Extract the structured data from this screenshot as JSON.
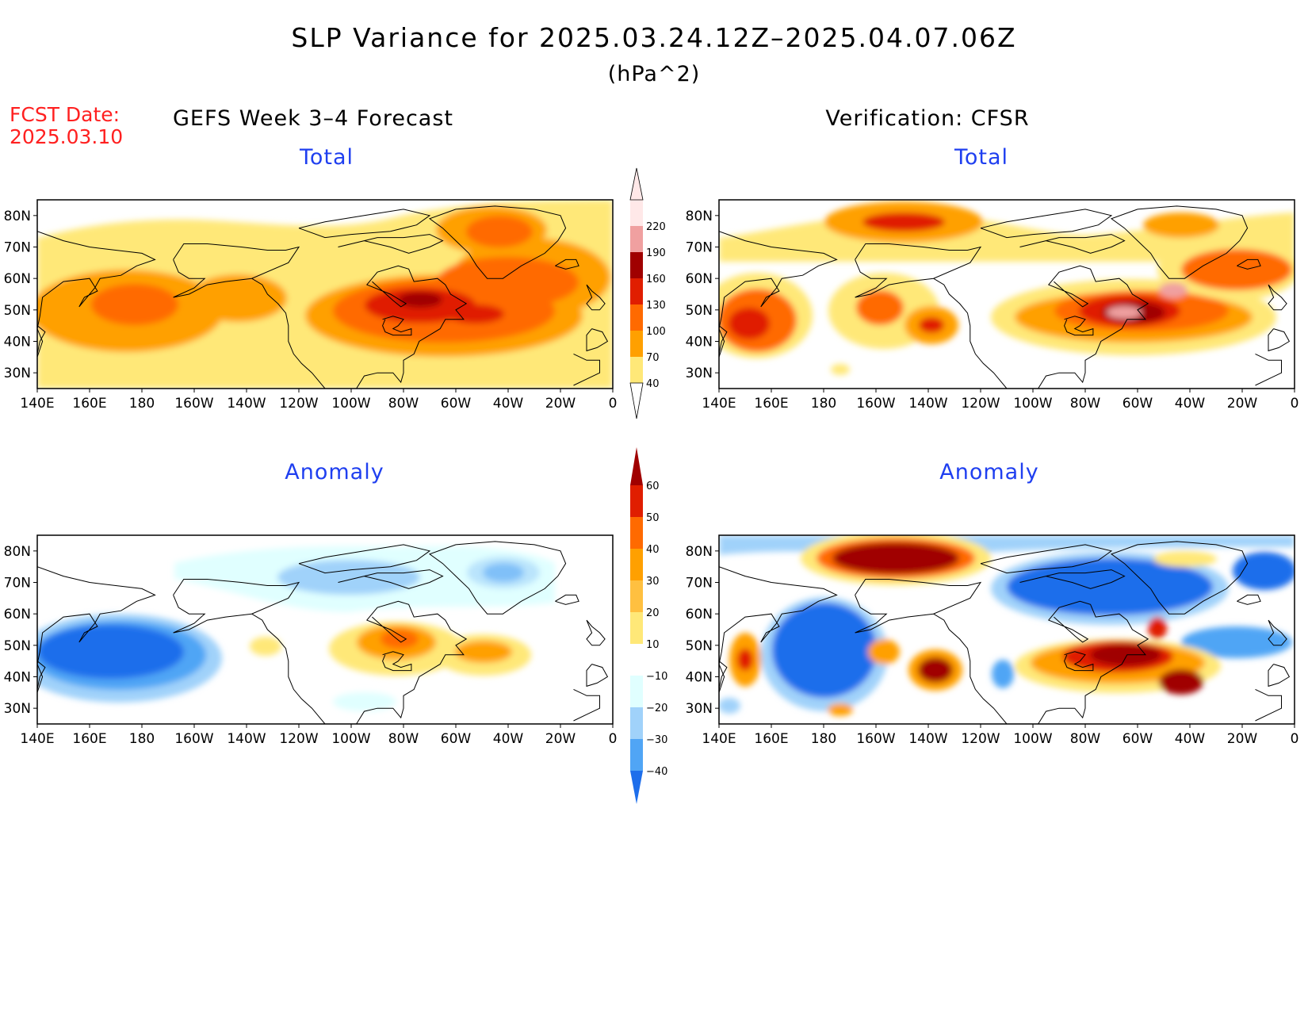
{
  "header": {
    "title": "SLP Variance for 2025.03.24.12Z–2025.04.07.06Z",
    "units": "(hPa^2)",
    "fcst_label": "FCST Date:",
    "fcst_date": "2025.03.10",
    "left_column_title": "GEFS Week 3–4 Forecast",
    "right_column_title": "Verification: CFSR"
  },
  "panels": {
    "forecast_total": {
      "title": "Total"
    },
    "verification_total": {
      "title": "Total"
    },
    "forecast_anomaly": {
      "title": "Anomaly"
    },
    "verification_anomaly": {
      "title": "Anomaly"
    }
  },
  "axes": {
    "lon_labels": [
      "140E",
      "160E",
      "180",
      "160W",
      "140W",
      "120W",
      "100W",
      "80W",
      "60W",
      "40W",
      "20W",
      "0"
    ],
    "lat_labels": [
      "80N",
      "70N",
      "60N",
      "50N",
      "40N",
      "30N"
    ],
    "lon_range_deg_east": [
      140,
      360
    ],
    "lat_range_deg_north": [
      25,
      85
    ]
  },
  "colorbars": {
    "total": {
      "labels": [
        "40",
        "70",
        "100",
        "130",
        "160",
        "190",
        "220"
      ],
      "colors": [
        "#ffe878",
        "#ffa000",
        "#ff6a00",
        "#e01e00",
        "#a00000",
        "#f0a0a0",
        "#ffe8e8"
      ]
    },
    "anomaly": {
      "labels": [
        "60",
        "50",
        "40",
        "30",
        "20",
        "10",
        "−10",
        "−20",
        "−30",
        "−40"
      ],
      "colors": [
        "#a00000",
        "#e01e00",
        "#ff6a00",
        "#ffa000",
        "#ffc040",
        "#ffe878",
        "#ffffff",
        "#e0ffff",
        "#a0d2fa",
        "#50a5f5",
        "#1e6eeb",
        "#1450c8"
      ]
    }
  }
}
